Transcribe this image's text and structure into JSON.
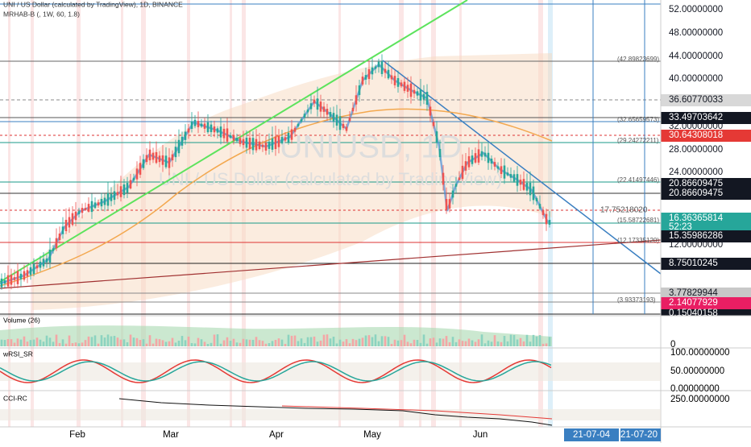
{
  "header": {
    "title": "UNI / US Dollar (calculated by TradingView), 1D, BINANCE",
    "indicator": "MRHAB-B (, 1W, 60, 1.8)"
  },
  "watermark": {
    "symbol": "UNIUSD, 1D",
    "description": "UNI / US Dollar (calculated by TradingView)"
  },
  "price_axis": [
    "52.00000000",
    "48.00000000",
    "44.00000000",
    "40.00000000",
    "36.60770033",
    "33.49703642",
    "32.00000000",
    "30.64308018",
    "28.00000000",
    "24.00000000",
    "20.86609475",
    "20.86609475",
    "16.36365814",
    "52:23",
    "15.35986286",
    "12.00000000",
    "8.75010245",
    "3.77829944",
    "2.14077929",
    "0.15040158"
  ],
  "level_labels": [
    "(42.89823699)",
    "(32.65659573)",
    "(29.24272211)",
    "(22.41497446)",
    "17.75218020",
    "(15.58722681)",
    "(12.17335120)",
    "(3.93373193)"
  ],
  "panes": {
    "volume": {
      "label": "Volume (26)",
      "axis": [
        "0"
      ]
    },
    "wrsi": {
      "label": "wRSI_SR",
      "axis": [
        "100.00000000",
        "50.00000000",
        "0.00000000"
      ]
    },
    "cci": {
      "label": "CCI-RC",
      "axis": [
        "250.00000000"
      ]
    }
  },
  "time_axis": {
    "months": [
      "Feb",
      "Mar",
      "Apr",
      "May",
      "Jun"
    ],
    "markers": [
      "21-07-04",
      "21-07-20"
    ]
  }
}
